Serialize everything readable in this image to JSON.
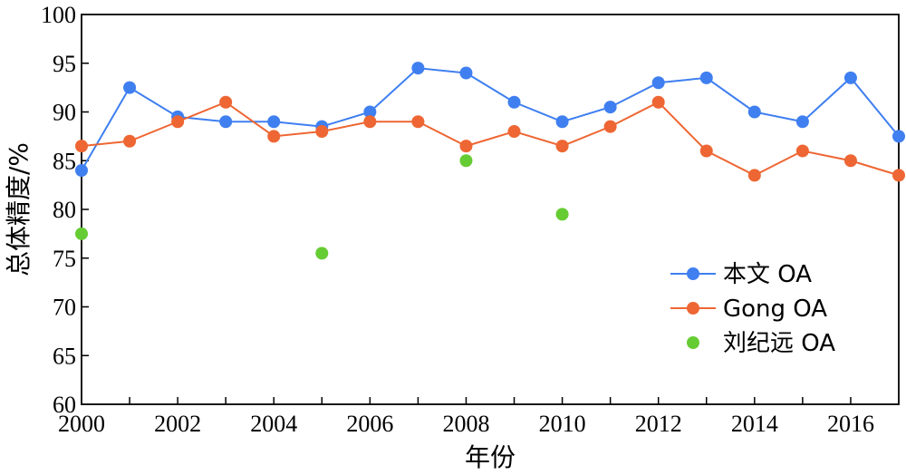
{
  "chart_data": {
    "type": "line",
    "xlabel": "年份",
    "ylabel": "总体精度/%",
    "xlim": [
      2000,
      2017
    ],
    "ylim": [
      60,
      100
    ],
    "x_ticks": [
      2000,
      2002,
      2004,
      2006,
      2008,
      2010,
      2012,
      2014,
      2016
    ],
    "y_ticks": [
      60,
      65,
      70,
      75,
      80,
      85,
      90,
      95,
      100
    ],
    "grid": false,
    "legend_position": "bottom-right",
    "series": [
      {
        "name": "本文 OA",
        "style": "line-marker",
        "color": "#3f7ff0",
        "x": [
          2000,
          2001,
          2002,
          2003,
          2004,
          2005,
          2006,
          2007,
          2008,
          2009,
          2010,
          2011,
          2012,
          2013,
          2014,
          2015,
          2016,
          2017
        ],
        "values": [
          84,
          92.5,
          89.5,
          89,
          89,
          88.5,
          90,
          94.5,
          94,
          91,
          89,
          90.5,
          93,
          93.5,
          90,
          89,
          93.5,
          87.5
        ]
      },
      {
        "name": "Gong OA",
        "style": "line-marker",
        "color": "#ee6633",
        "x": [
          2000,
          2001,
          2002,
          2003,
          2004,
          2005,
          2006,
          2007,
          2008,
          2009,
          2010,
          2011,
          2012,
          2013,
          2014,
          2015,
          2016,
          2017
        ],
        "values": [
          86.5,
          87,
          89,
          91,
          87.5,
          88,
          89,
          89,
          86.5,
          88,
          86.5,
          88.5,
          91,
          86,
          83.5,
          86,
          85,
          83.5
        ]
      },
      {
        "name": "刘纪远 OA",
        "style": "marker",
        "color": "#66cc33",
        "x": [
          2000,
          2005,
          2008,
          2010
        ],
        "values": [
          77.5,
          75.5,
          85,
          79.5
        ]
      }
    ]
  }
}
